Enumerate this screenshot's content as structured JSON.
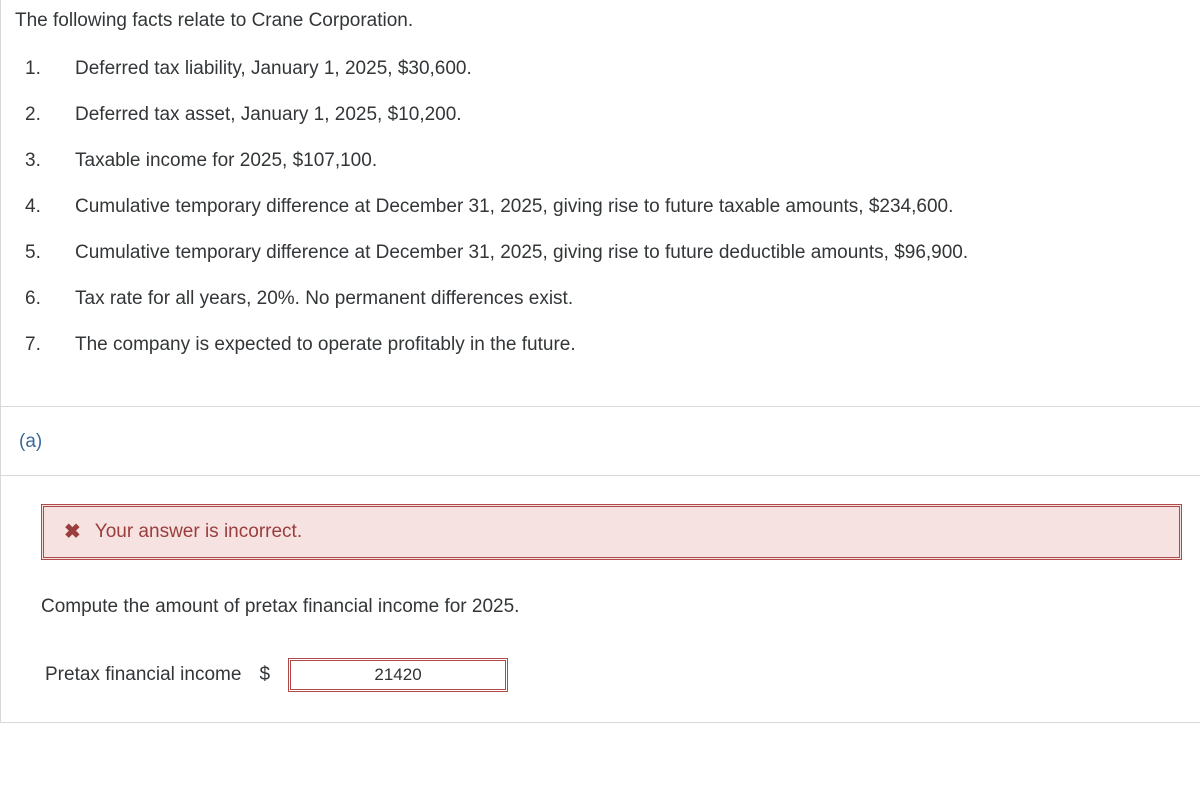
{
  "intro": "The following facts relate to Crane Corporation.",
  "facts": [
    {
      "n": "1.",
      "text": "Deferred tax liability, January 1, 2025, $30,600."
    },
    {
      "n": "2.",
      "text": "Deferred tax asset, January 1, 2025, $10,200."
    },
    {
      "n": "3.",
      "text": "Taxable income for 2025, $107,100."
    },
    {
      "n": "4.",
      "text": "Cumulative temporary difference at December 31, 2025, giving rise to future taxable amounts, $234,600."
    },
    {
      "n": "5.",
      "text": "Cumulative temporary difference at December 31, 2025, giving rise to future deductible amounts, $96,900."
    },
    {
      "n": "6.",
      "text": "Tax rate for all years, 20%. No permanent differences exist."
    },
    {
      "n": "7.",
      "text": "The company is expected to operate profitably in the future."
    }
  ],
  "part_label": "(a)",
  "error_message": "Your answer is incorrect.",
  "question": "Compute the amount of pretax financial income for 2025.",
  "answer_label": "Pretax financial income",
  "currency_symbol": "$",
  "entered_value": "21420",
  "colors": {
    "border": "#d9d9d9",
    "text": "#333638",
    "part_label": "#3a6a9a",
    "error_border": "#b04a4a",
    "error_bg": "#f7e2e2",
    "error_text": "#9a3d3d"
  }
}
